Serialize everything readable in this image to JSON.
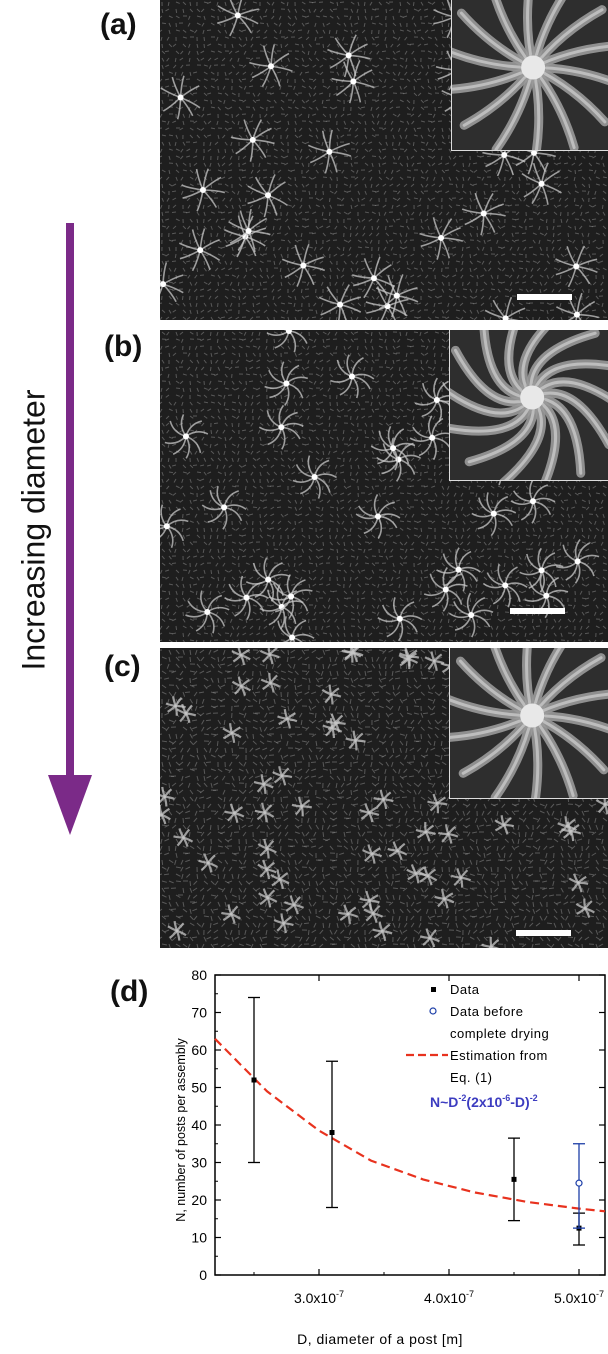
{
  "panels": {
    "a": {
      "label": "(a)"
    },
    "b": {
      "label": "(b)"
    },
    "c": {
      "label": "(c)"
    },
    "d": {
      "label": "(d)"
    }
  },
  "arrow": {
    "label": "Increasing diameter",
    "color": "#7b2a88"
  },
  "colors": {
    "fit": "#e8321e",
    "data": "#000000",
    "data_before": "#1d3fa8",
    "equation": "#3c3cc0"
  },
  "chart_data": {
    "type": "scatter",
    "xlabel": "D, diameter of a post [m]",
    "ylabel": "N, number of posts per assembly",
    "xlim": [
      2.2e-07,
      5.2e-07
    ],
    "ylim": [
      0,
      80
    ],
    "xticks": [
      {
        "v": 3e-07,
        "mant": "3.0x10",
        "exp": "-7"
      },
      {
        "v": 4e-07,
        "mant": "4.0x10",
        "exp": "-7"
      },
      {
        "v": 5e-07,
        "mant": "5.0x10",
        "exp": "-7"
      }
    ],
    "yticks": [
      0,
      10,
      20,
      30,
      40,
      50,
      60,
      70,
      80
    ],
    "series": [
      {
        "name": "Data",
        "marker": "filled-square",
        "points": [
          {
            "x": 2.5e-07,
            "y": 52,
            "lo": 30,
            "hi": 74
          },
          {
            "x": 3.1e-07,
            "y": 38,
            "lo": 18,
            "hi": 57
          },
          {
            "x": 4.5e-07,
            "y": 25.5,
            "lo": 14.5,
            "hi": 36.5
          },
          {
            "x": 5e-07,
            "y": 12.5,
            "lo": 8,
            "hi": 16.5
          }
        ]
      },
      {
        "name": "Data before complete drying",
        "marker": "open-circle",
        "points": [
          {
            "x": 5e-07,
            "y": 24.5,
            "lo": 12.5,
            "hi": 35
          }
        ]
      }
    ],
    "fit": {
      "name": "Estimation from Eq. (1)",
      "style": "dashed",
      "x": [
        2.2e-07,
        2.6e-07,
        3e-07,
        3.4e-07,
        3.8e-07,
        4.2e-07,
        4.6e-07,
        5e-07,
        5.2e-07
      ],
      "y": [
        63,
        49,
        38.5,
        30.5,
        25.5,
        22,
        19.5,
        17.7,
        17
      ]
    },
    "legend": {
      "placement": "top-right",
      "data_label": "Data",
      "before_label_1": "Data before",
      "before_label_2": "complete drying",
      "fit_label_1": "Estimation from",
      "fit_label_2": "Eq. (1)"
    },
    "equation": {
      "p1": "N~D",
      "e1": "-2",
      "p2": "(2x10",
      "e2": "-6",
      "p3": "-D)",
      "e3": "-2"
    }
  }
}
